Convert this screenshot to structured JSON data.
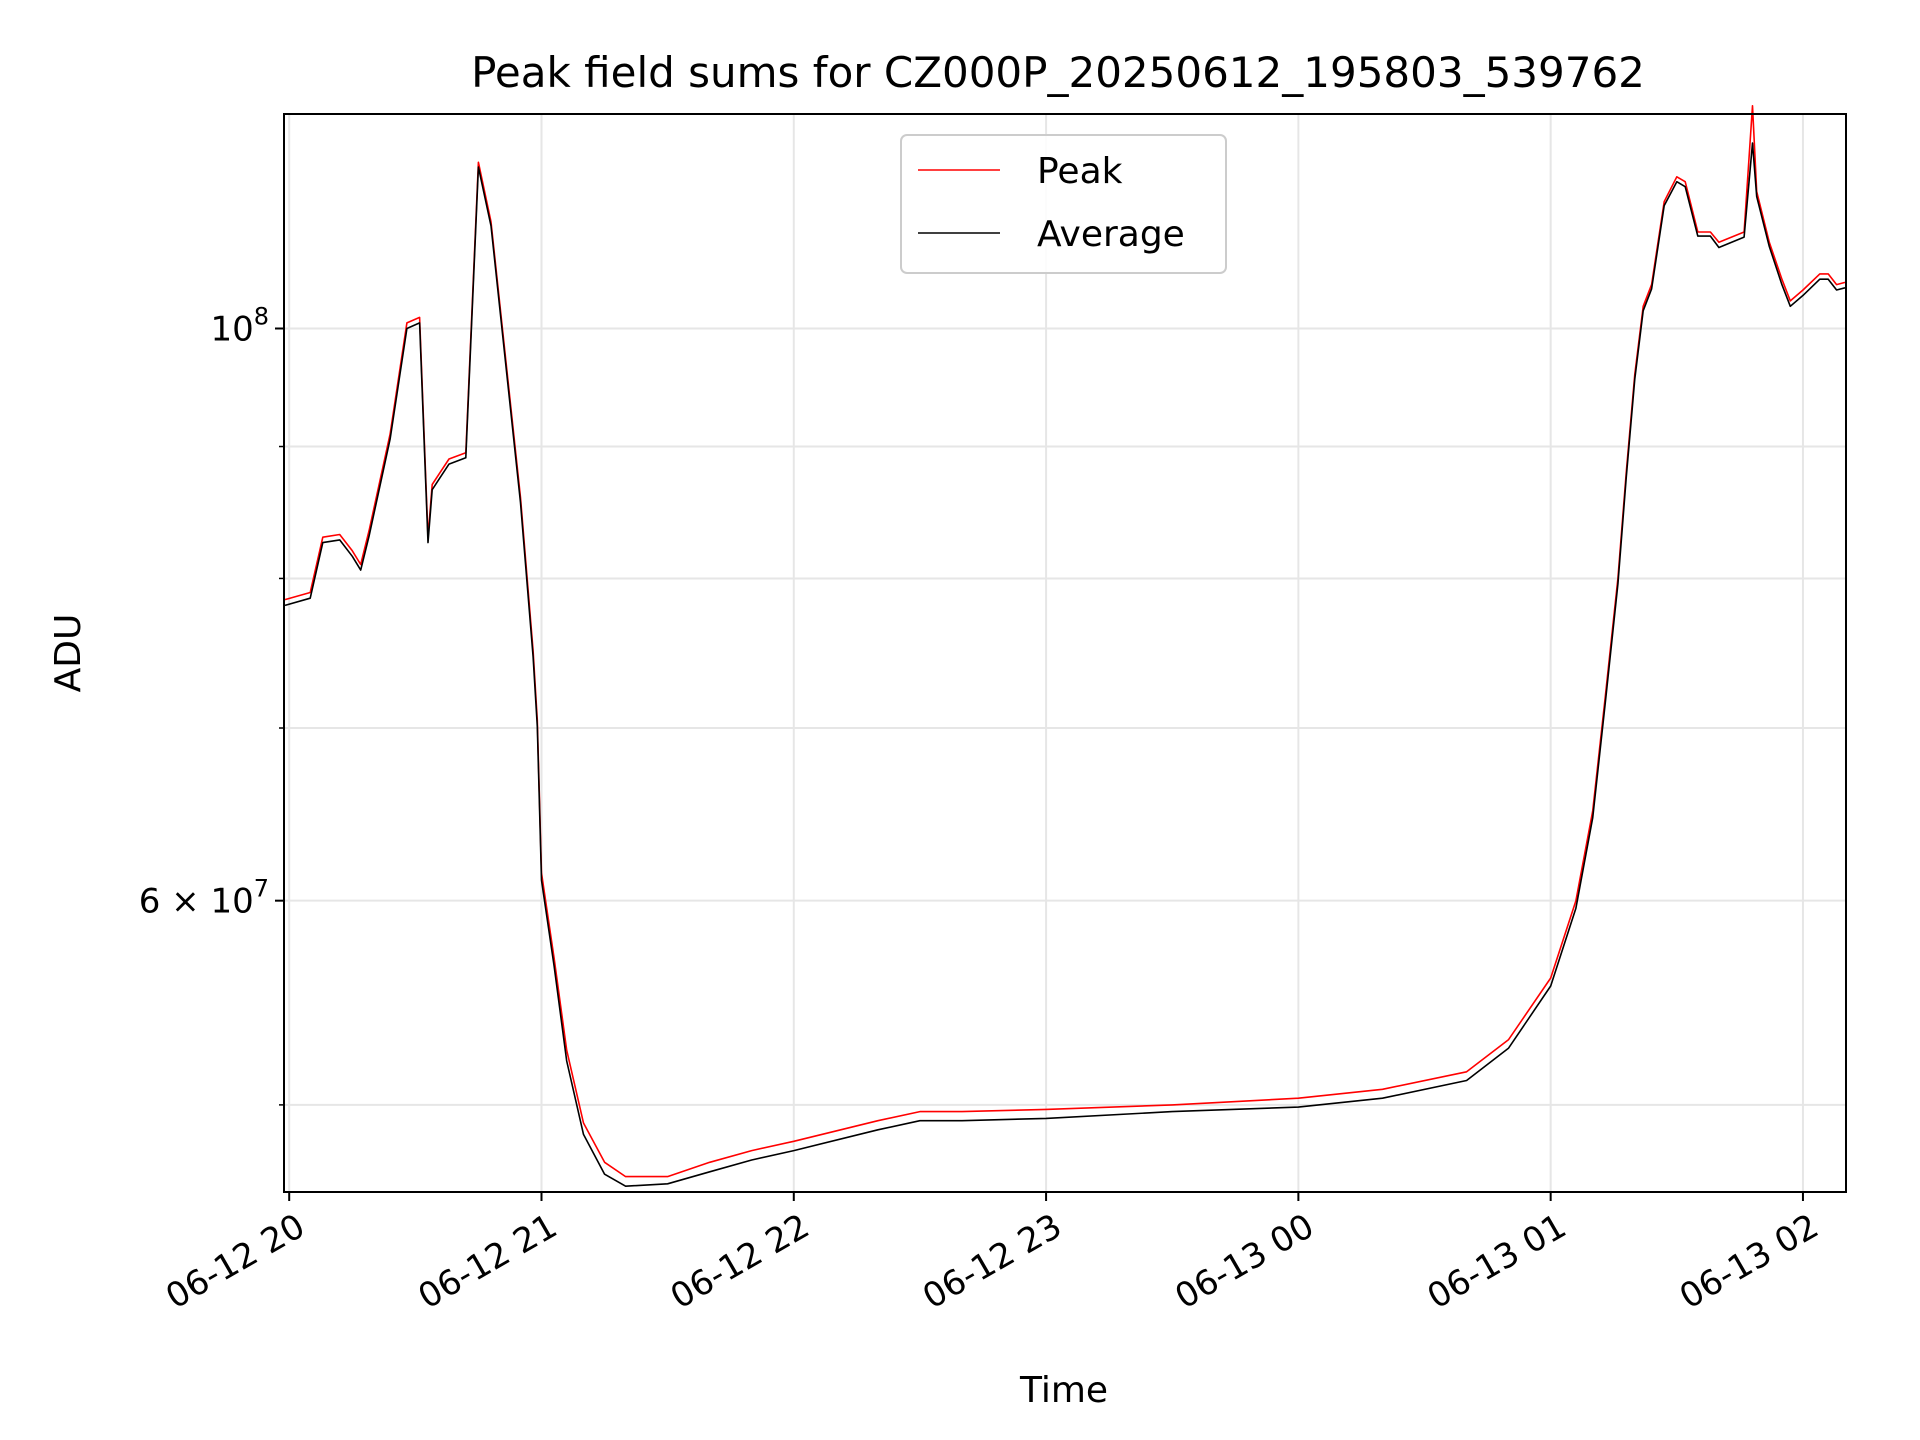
{
  "chart_data": {
    "type": "line",
    "title": "Peak field sums for CZ000P_20250612_195803_539762",
    "xlabel": "Time",
    "ylabel": "ADU",
    "yscale": "log",
    "grid": true,
    "legend_position": "upper center",
    "xlim": [
      "2025-06-12 19:59",
      "2025-06-13 02:10"
    ],
    "ylim": [
      46300000,
      121000000
    ],
    "x_ticks": [
      {
        "value": "2025-06-12 20:00",
        "label": "06-12 20"
      },
      {
        "value": "2025-06-12 21:00",
        "label": "06-12 21"
      },
      {
        "value": "2025-06-12 22:00",
        "label": "06-12 22"
      },
      {
        "value": "2025-06-12 23:00",
        "label": "06-12 23"
      },
      {
        "value": "2025-06-13 00:00",
        "label": "06-13 00"
      },
      {
        "value": "2025-06-13 01:00",
        "label": "06-13 01"
      },
      {
        "value": "2025-06-13 02:00",
        "label": "06-13 02"
      }
    ],
    "y_ticks_major": [
      {
        "value": 60000000,
        "label": "6 × 10",
        "exp": "7"
      },
      {
        "value": 100000000,
        "label": "10",
        "exp": "8"
      }
    ],
    "y_ticks_minor": [
      50000000,
      70000000,
      80000000,
      90000000
    ],
    "x": [
      "2025-06-12 19:59",
      "2025-06-12 20:05",
      "2025-06-12 20:08",
      "2025-06-12 20:12",
      "2025-06-12 20:15",
      "2025-06-12 20:17",
      "2025-06-12 20:19",
      "2025-06-12 20:24",
      "2025-06-12 20:28",
      "2025-06-12 20:31",
      "2025-06-12 20:33",
      "2025-06-12 20:34",
      "2025-06-12 20:36",
      "2025-06-12 20:38",
      "2025-06-12 20:42",
      "2025-06-12 20:45",
      "2025-06-12 20:48",
      "2025-06-12 20:55",
      "2025-06-12 20:58",
      "2025-06-12 20:59",
      "2025-06-12 21:00",
      "2025-06-12 21:03",
      "2025-06-12 21:06",
      "2025-06-12 21:10",
      "2025-06-12 21:15",
      "2025-06-12 21:20",
      "2025-06-12 21:30",
      "2025-06-12 21:40",
      "2025-06-12 21:50",
      "2025-06-12 22:00",
      "2025-06-12 22:20",
      "2025-06-12 22:30",
      "2025-06-12 22:40",
      "2025-06-12 23:00",
      "2025-06-12 23:30",
      "2025-06-13 00:00",
      "2025-06-13 00:20",
      "2025-06-13 00:40",
      "2025-06-13 00:50",
      "2025-06-13 01:00",
      "2025-06-13 01:06",
      "2025-06-13 01:10",
      "2025-06-13 01:13",
      "2025-06-13 01:16",
      "2025-06-13 01:18",
      "2025-06-13 01:20",
      "2025-06-13 01:22",
      "2025-06-13 01:24",
      "2025-06-13 01:27",
      "2025-06-13 01:30",
      "2025-06-13 01:32",
      "2025-06-13 01:35",
      "2025-06-13 01:38",
      "2025-06-13 01:40",
      "2025-06-13 01:46",
      "2025-06-13 01:48",
      "2025-06-13 01:49",
      "2025-06-13 01:52",
      "2025-06-13 01:55",
      "2025-06-13 01:57",
      "2025-06-13 02:00",
      "2025-06-13 02:04",
      "2025-06-13 02:06",
      "2025-06-13 02:08",
      "2025-06-13 02:10"
    ],
    "series": [
      {
        "name": "Peak",
        "color": "#ff0000",
        "values": [
          78500000,
          79000000,
          83000000,
          83200000,
          82000000,
          81000000,
          83500000,
          91000000,
          100500000,
          101000000,
          83000000,
          87000000,
          88000000,
          89000000,
          89500000,
          116000000,
          110000000,
          86000000,
          75000000,
          70500000,
          61500000,
          57000000,
          52500000,
          49200000,
          47500000,
          46900000,
          46900000,
          47500000,
          48000000,
          48400000,
          49300000,
          49700000,
          49700000,
          49800000,
          50000000,
          50300000,
          50700000,
          51500000,
          53000000,
          56000000,
          60000000,
          65000000,
          72000000,
          80000000,
          88000000,
          96000000,
          102000000,
          104000000,
          112000000,
          114500000,
          114000000,
          109000000,
          109000000,
          108000000,
          109000000,
          122000000,
          113000000,
          108000000,
          104500000,
          102500000,
          103500000,
          105000000,
          105000000,
          104000000,
          104200000
        ]
      },
      {
        "name": "Average",
        "color": "#000000",
        "values": [
          78100000,
          78600000,
          82600000,
          82800000,
          81600000,
          80600000,
          83100000,
          90600000,
          100000000,
          100500000,
          82600000,
          86600000,
          87600000,
          88600000,
          89100000,
          115500000,
          109600000,
          85600000,
          74600000,
          70100000,
          61100000,
          56600000,
          52000000,
          48700000,
          47000000,
          46500000,
          46600000,
          47100000,
          47600000,
          48000000,
          48900000,
          49300000,
          49300000,
          49400000,
          49700000,
          49900000,
          50300000,
          51100000,
          52600000,
          55600000,
          59600000,
          64600000,
          71600000,
          79600000,
          87600000,
          95600000,
          101600000,
          103600000,
          111600000,
          114000000,
          113500000,
          108600000,
          108600000,
          107500000,
          108500000,
          118000000,
          112500000,
          107600000,
          104000000,
          102000000,
          103000000,
          104500000,
          104500000,
          103500000,
          103700000
        ]
      }
    ]
  }
}
